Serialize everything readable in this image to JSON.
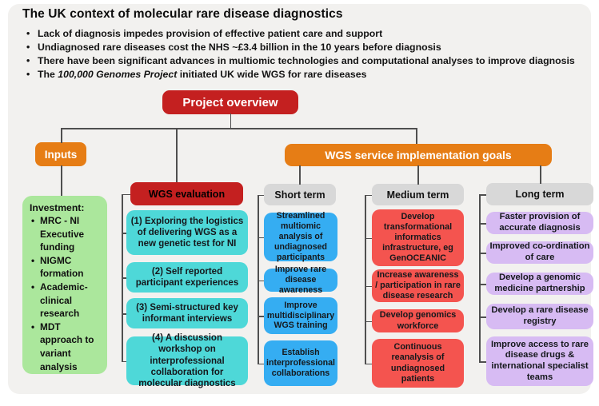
{
  "header": {
    "title": "The UK context of molecular rare disease diagnostics",
    "bullets": [
      [
        {
          "text": "Lack of diagnosis impedes provision of effective patient care and support"
        }
      ],
      [
        {
          "text": "Undiagnosed rare diseases cost the NHS ~£3.4 billion in the 10 years before diagnosis"
        }
      ],
      [
        {
          "text": "There have been significant advances in multiomic technologies and computational analyses to improve diagnosis"
        }
      ],
      [
        {
          "text": "The "
        },
        {
          "text": "100,000 Genomes Project",
          "italic": true
        },
        {
          "text": " initiated UK wide WGS for rare diseases"
        }
      ]
    ]
  },
  "nodes": {
    "project_overview": "Project overview",
    "inputs": "Inputs",
    "goals": "WGS service implementation goals"
  },
  "investment": {
    "title": "Investment:",
    "items": [
      "MRC - NI Executive funding",
      "NIGMC formation",
      "Academic-clinical research",
      "MDT approach to variant analysis"
    ]
  },
  "columns": [
    {
      "id": "wgs-evaluation",
      "header": "WGS evaluation",
      "header_color_key": "red",
      "header_text": "white",
      "item_color_key": "teal",
      "items": [
        "(1) Exploring the logistics of delivering WGS as a new genetic test for NI",
        "(2) Self reported participant experiences",
        "(3) Semi-structured key informant interviews",
        "(4) A discussion workshop on interprofessional collaboration for molecular diagnostics"
      ]
    },
    {
      "id": "short-term",
      "header": "Short term",
      "header_color_key": "grey",
      "header_text": "dark",
      "item_color_key": "blue",
      "items": [
        "Streamlined multiomic analysis of undiagnosed participants",
        "Improve rare disease awareness",
        "Improve multidisciplinary WGS training",
        "Establish interprofessional collaborations"
      ]
    },
    {
      "id": "medium-term",
      "header": "Medium term",
      "header_color_key": "grey",
      "header_text": "dark",
      "item_color_key": "salmon",
      "items": [
        "Develop transformational informatics infrastructure, eg GenOCEANIC",
        "Increase awareness / participation in rare disease research",
        "Develop genomics workforce",
        "Continuous reanalysis of undiagnosed patients"
      ]
    },
    {
      "id": "long-term",
      "header": "Long term",
      "header_color_key": "grey",
      "header_text": "dark",
      "item_color_key": "purple",
      "items": [
        "Faster provision of accurate diagnosis",
        "Improved co-ordination of care",
        "Develop a genomic medicine partnership",
        "Develop a rare disease registry",
        "Improve access to rare disease drugs & international specialist teams"
      ]
    }
  ],
  "colors": {
    "red": "#c42020",
    "orange": "#e67d15",
    "grey": "#d8d8d8",
    "green": "#abe79c",
    "teal": "#4ed8d8",
    "blue": "#35adf2",
    "salmon": "#f4544f",
    "purple": "#d7bbf3",
    "line": "#4f4f4f",
    "panel": "#f2f1ef"
  }
}
